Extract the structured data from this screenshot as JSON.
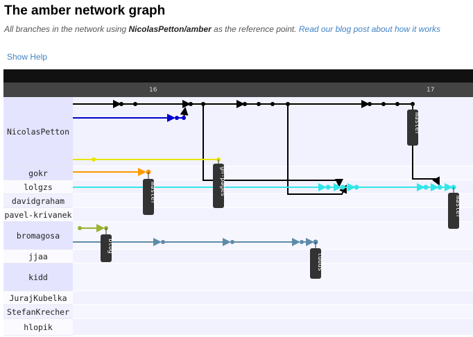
{
  "page": {
    "title": "The amber network graph",
    "subtitle_prefix": "All branches in the network using ",
    "subtitle_ref": "NicolasPetton/amber",
    "subtitle_middle": " as the reference point. ",
    "subtitle_link": "Read our blog post about how it works",
    "show_help": "Show Help"
  },
  "graph": {
    "dates": [
      "16",
      "17"
    ],
    "users": [
      "NicolasPetton",
      "gokr",
      "lolgzs",
      "davidgraham",
      "pavel-krivanek",
      "bromagosa",
      "jjaa",
      "kidd",
      "JurajKubelka",
      "StefanKrecher",
      "hlopik"
    ],
    "refs": [
      "master",
      "gh-pages",
      "master",
      "master",
      "blog",
      "ludus"
    ],
    "colors": {
      "nicolas_main": "#000000",
      "nicolas_blue": "#0000cc",
      "nicolas_yellow": "#e6e600",
      "gokr": "#ff9900",
      "lolgzs": "#33e6e6",
      "bromagosa": "#99b333",
      "jjaa": "#5e8ca8"
    }
  }
}
